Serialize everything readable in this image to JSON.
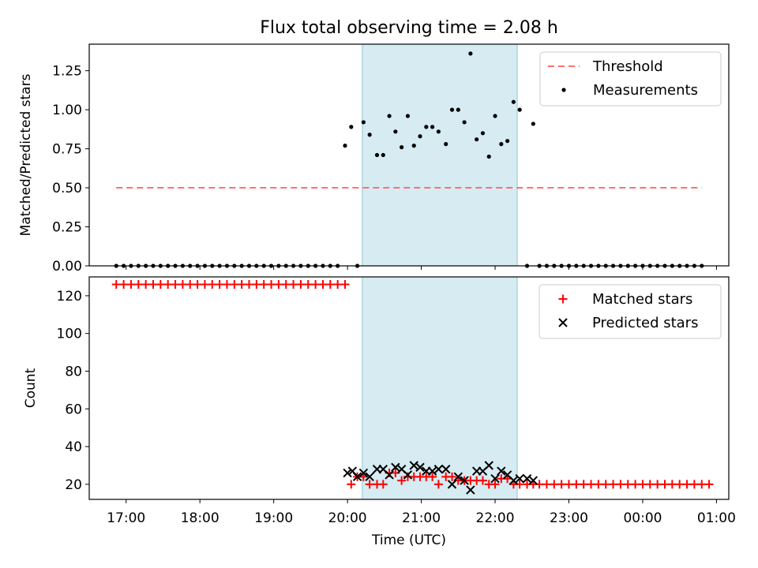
{
  "chart_data": [
    {
      "type": "scatter",
      "title": "Flux total observing time = 2.08 h",
      "ylabel": "Matched/Predicted stars",
      "xlabel": "",
      "xlim": [
        "16:30",
        "01:10"
      ],
      "ylim": [
        0,
        1.42
      ],
      "yticks": [
        "0.00",
        "0.25",
        "0.50",
        "0.75",
        "1.00",
        "1.25"
      ],
      "shaded_span": [
        "20:12",
        "22:18"
      ],
      "legend_position": "top-right",
      "series": [
        {
          "name": "Threshold",
          "style": "dashed-line",
          "color": "#ff7070",
          "x": [
            "16:52",
            "00:48"
          ],
          "y": [
            0.5,
            0.5
          ]
        },
        {
          "name": "Measurements",
          "style": "dot",
          "color": "#000000",
          "x": [
            "16:52",
            "16:58",
            "17:04",
            "17:10",
            "17:16",
            "17:22",
            "17:28",
            "17:34",
            "17:40",
            "17:46",
            "17:52",
            "17:58",
            "18:04",
            "18:10",
            "18:16",
            "18:22",
            "18:28",
            "18:34",
            "18:40",
            "18:46",
            "18:52",
            "18:58",
            "19:04",
            "19:10",
            "19:16",
            "19:22",
            "19:28",
            "19:34",
            "19:40",
            "19:46",
            "19:52",
            "19:58",
            "20:03",
            "20:08",
            "20:13",
            "20:18",
            "20:24",
            "20:29",
            "20:34",
            "20:39",
            "20:44",
            "20:49",
            "20:54",
            "20:59",
            "21:04",
            "21:09",
            "21:14",
            "21:20",
            "21:25",
            "21:30",
            "21:35",
            "21:40",
            "21:45",
            "21:50",
            "21:55",
            "22:00",
            "22:05",
            "22:10",
            "22:15",
            "22:20",
            "22:26",
            "22:31",
            "22:36",
            "22:42",
            "22:48",
            "22:54",
            "23:00",
            "23:06",
            "23:12",
            "23:18",
            "23:24",
            "23:30",
            "23:36",
            "23:42",
            "23:48",
            "23:54",
            "00:00",
            "00:06",
            "00:12",
            "00:18",
            "00:24",
            "00:30",
            "00:36",
            "00:42",
            "00:48"
          ],
          "y": [
            0,
            0,
            0,
            0,
            0,
            0,
            0,
            0,
            0,
            0,
            0,
            0,
            0,
            0,
            0,
            0,
            0,
            0,
            0,
            0,
            0,
            0,
            0,
            0,
            0,
            0,
            0,
            0,
            0,
            0,
            0,
            0.77,
            0.89,
            0,
            0.92,
            0.84,
            0.71,
            0.71,
            0.96,
            0.86,
            0.76,
            0.96,
            0.77,
            0.83,
            0.89,
            0.89,
            0.86,
            0.78,
            1.0,
            1.0,
            0.92,
            1.36,
            0.81,
            0.85,
            0.7,
            0.96,
            0.78,
            0.8,
            1.05,
            1.0,
            0,
            0.91,
            0,
            0,
            0,
            0,
            0,
            0,
            0,
            0,
            0,
            0,
            0,
            0,
            0,
            0,
            0,
            0,
            0,
            0,
            0,
            0,
            0,
            0,
            0
          ]
        }
      ]
    },
    {
      "type": "scatter",
      "title": "",
      "xlabel": "Time (UTC)",
      "ylabel": "Count",
      "xlim": [
        "16:30",
        "01:10"
      ],
      "ylim": [
        12,
        130
      ],
      "yticks": [
        "20",
        "40",
        "60",
        "80",
        "100",
        "120"
      ],
      "xticks": [
        "17:00",
        "18:00",
        "19:00",
        "20:00",
        "21:00",
        "22:00",
        "23:00",
        "00:00",
        "01:00"
      ],
      "shaded_span": [
        "20:12",
        "22:18"
      ],
      "legend_position": "top-right",
      "series": [
        {
          "name": "Matched stars",
          "marker": "plus",
          "color": "#ff0000",
          "x": [
            "16:52",
            "16:58",
            "17:04",
            "17:10",
            "17:16",
            "17:22",
            "17:28",
            "17:34",
            "17:40",
            "17:46",
            "17:52",
            "17:58",
            "18:04",
            "18:10",
            "18:16",
            "18:22",
            "18:28",
            "18:34",
            "18:40",
            "18:46",
            "18:52",
            "18:58",
            "19:04",
            "19:10",
            "19:16",
            "19:22",
            "19:28",
            "19:34",
            "19:40",
            "19:46",
            "19:52",
            "19:58",
            "20:03",
            "20:08",
            "20:13",
            "20:18",
            "20:24",
            "20:29",
            "20:34",
            "20:39",
            "20:44",
            "20:49",
            "20:54",
            "20:59",
            "21:04",
            "21:09",
            "21:14",
            "21:20",
            "21:25",
            "21:30",
            "21:35",
            "21:40",
            "21:45",
            "21:50",
            "21:55",
            "22:00",
            "22:05",
            "22:10",
            "22:15",
            "22:20",
            "22:26",
            "22:31",
            "22:36",
            "22:42",
            "22:48",
            "22:54",
            "23:00",
            "23:06",
            "23:12",
            "23:18",
            "23:24",
            "23:30",
            "23:36",
            "23:42",
            "23:48",
            "23:54",
            "00:00",
            "00:06",
            "00:12",
            "00:18",
            "00:24",
            "00:30",
            "00:36",
            "00:42",
            "00:48",
            "00:54"
          ],
          "y": [
            126,
            126,
            126,
            126,
            126,
            126,
            126,
            126,
            126,
            126,
            126,
            126,
            126,
            126,
            126,
            126,
            126,
            126,
            126,
            126,
            126,
            126,
            126,
            126,
            126,
            126,
            126,
            126,
            126,
            126,
            126,
            126,
            20,
            24,
            24,
            20,
            20,
            20,
            26,
            26,
            22,
            24,
            24,
            24,
            24,
            24,
            20,
            24,
            24,
            22,
            22,
            22,
            22,
            22,
            20,
            20,
            23,
            23,
            20,
            20,
            20,
            20,
            20,
            20,
            20,
            20,
            20,
            20,
            20,
            20,
            20,
            20,
            20,
            20,
            20,
            20,
            20,
            20,
            20,
            20,
            20,
            20,
            20,
            20,
            20,
            20
          ]
        },
        {
          "name": "Predicted stars",
          "marker": "x",
          "color": "#000000",
          "x": [
            "20:00",
            "20:04",
            "20:08",
            "20:13",
            "20:18",
            "20:24",
            "20:29",
            "20:34",
            "20:39",
            "20:44",
            "20:49",
            "20:54",
            "20:59",
            "21:04",
            "21:09",
            "21:14",
            "21:20",
            "21:25",
            "21:30",
            "21:35",
            "21:40",
            "21:45",
            "21:50",
            "21:55",
            "22:00",
            "22:05",
            "22:10",
            "22:15",
            "22:20",
            "22:26",
            "22:31"
          ],
          "y": [
            26,
            27,
            24,
            26,
            24,
            28,
            28,
            25,
            29,
            28,
            25,
            30,
            29,
            27,
            27,
            28,
            28,
            20,
            24,
            22,
            17,
            27,
            27,
            30,
            23,
            27,
            25,
            22,
            23,
            23,
            22
          ]
        }
      ]
    }
  ]
}
